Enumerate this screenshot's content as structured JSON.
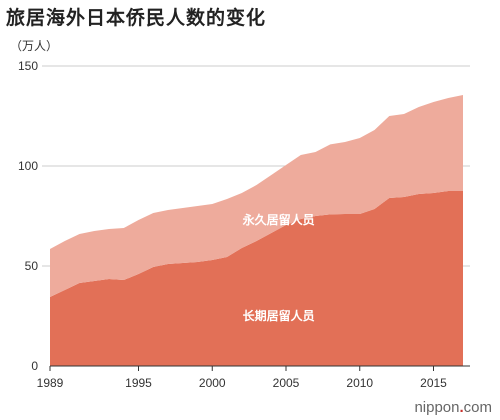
{
  "title": "旅居海外日本侨民人数的变化",
  "unit": "（万人）",
  "brand": {
    "prefix": "nippon",
    "suffix": "com"
  },
  "colors": {
    "long_term": "#e27057",
    "permanent": "#eeab9c",
    "grid": "#cccccc",
    "axis": "#333333"
  },
  "chart_data": {
    "type": "area",
    "stacked": true,
    "title": "旅居海外日本侨民人数的变化",
    "ylabel": "（万人）",
    "xlabel": "",
    "xlim": [
      1989,
      2017
    ],
    "ylim": [
      0,
      150
    ],
    "x_ticks": [
      1989,
      1995,
      2000,
      2005,
      2010,
      2015
    ],
    "y_ticks": [
      0,
      50,
      100,
      150
    ],
    "grid": true,
    "x": [
      1989,
      1990,
      1991,
      1992,
      1993,
      1994,
      1995,
      1996,
      1997,
      1998,
      1999,
      2000,
      2001,
      2002,
      2003,
      2004,
      2005,
      2006,
      2007,
      2008,
      2009,
      2010,
      2011,
      2012,
      2013,
      2014,
      2015,
      2016,
      2017
    ],
    "series": [
      {
        "name": "长期居留人员",
        "color": "#e27057",
        "values": [
          34.5,
          38,
          41.5,
          42.5,
          43.5,
          43,
          46,
          49.5,
          51,
          51.5,
          52,
          53,
          54.5,
          59,
          62.5,
          66.5,
          70.5,
          73.5,
          75,
          75.8,
          76,
          76,
          78.5,
          84,
          84.5,
          86,
          86.5,
          87.5,
          87.5
        ]
      },
      {
        "name": "永久居留人员",
        "color": "#eeab9c",
        "values": [
          24,
          24.5,
          24.5,
          25,
          25,
          26,
          27,
          27,
          27,
          27.5,
          28,
          28,
          29,
          27.5,
          28,
          29,
          30,
          32,
          32,
          35,
          36,
          38,
          39.5,
          41,
          41.5,
          43.5,
          45.5,
          46.5,
          48
        ]
      }
    ],
    "series_label_positions": {
      "长期居留人员": [
        2004.5,
        25
      ],
      "永久居留人员": [
        2004.5,
        73
      ]
    }
  }
}
